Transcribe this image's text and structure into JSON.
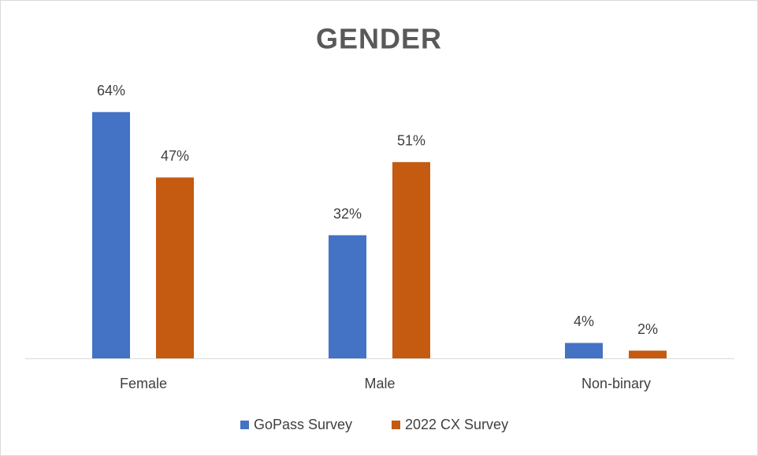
{
  "chart_data": {
    "type": "bar",
    "title": "GENDER",
    "categories": [
      "Female",
      "Male",
      "Non-binary"
    ],
    "series": [
      {
        "name": "GoPass Survey",
        "color": "#4472c4",
        "values": [
          64,
          32,
          4
        ],
        "value_labels": [
          "64%",
          "32%",
          "4%"
        ]
      },
      {
        "name": "2022 CX Survey",
        "color": "#c55a11",
        "values": [
          47,
          51,
          2
        ],
        "value_labels": [
          "47%",
          "51%",
          "2%"
        ]
      }
    ],
    "ylim": [
      0,
      70
    ],
    "legend": "bottom"
  }
}
